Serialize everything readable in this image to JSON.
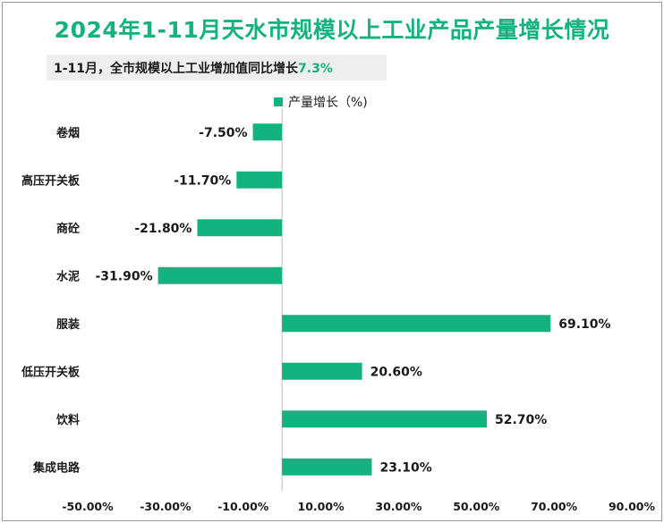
{
  "header": {
    "title": "2024年1-11月天水市规模以上工业产品产量增长情况",
    "subtitle_prefix": "1-11月，全市规模以上工业增加值同比增长",
    "subtitle_value": "7.3%"
  },
  "colors": {
    "bar": "#13b27e",
    "title": "#13b27e",
    "axis": "#bfbfbf"
  },
  "chart_data": {
    "type": "bar",
    "orientation": "horizontal",
    "title": "2024年1-11月天水市规模以上工业产品产量增长情况",
    "legend_position": "top",
    "series": [
      {
        "name": "产量增长（%)",
        "values": [
          -7.5,
          -11.7,
          -21.8,
          -31.9,
          69.1,
          20.6,
          52.7,
          23.1
        ],
        "value_labels": [
          "-7.50%",
          "-11.70%",
          "-21.80%",
          "-31.90%",
          "69.10%",
          "20.60%",
          "52.70%",
          "23.10%"
        ]
      }
    ],
    "categories": [
      "卷烟",
      "高压开关板",
      "商砼",
      "水泥",
      "服装",
      "低压开关板",
      "饮料",
      "集成电路"
    ],
    "xlim": [
      -50,
      90
    ],
    "x_ticks": [
      -50,
      -30,
      -10,
      10,
      30,
      50,
      70,
      90
    ],
    "x_tick_labels": [
      "-50.00%",
      "-30.00%",
      "-10.00%",
      "10.00%",
      "30.00%",
      "50.00%",
      "70.00%",
      "90.00%"
    ],
    "grid": false
  }
}
